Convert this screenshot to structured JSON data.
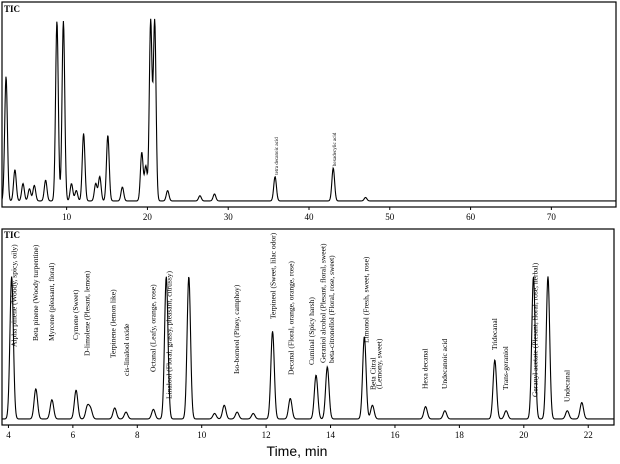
{
  "figure": {
    "xlabel": "Time, min"
  },
  "chart_data": [
    {
      "type": "line",
      "title": "TIC",
      "xlabel": "",
      "ylabel": "",
      "xlim": [
        2,
        78
      ],
      "ylim": [
        0,
        100
      ],
      "x_ticks": [
        10,
        20,
        30,
        40,
        50,
        60,
        70
      ],
      "grid": false,
      "legend": "none",
      "series": [
        {
          "peaks": [
            {
              "x": 2.5,
              "y": 72
            },
            {
              "x": 3.6,
              "y": 18
            },
            {
              "x": 4.6,
              "y": 10
            },
            {
              "x": 5.4,
              "y": 7
            },
            {
              "x": 6.0,
              "y": 9
            },
            {
              "x": 7.4,
              "y": 12
            },
            {
              "x": 8.8,
              "y": 104
            },
            {
              "x": 9.6,
              "y": 104
            },
            {
              "x": 10.6,
              "y": 10
            },
            {
              "x": 11.2,
              "y": 6
            },
            {
              "x": 12.1,
              "y": 39
            },
            {
              "x": 13.6,
              "y": 10
            },
            {
              "x": 14.1,
              "y": 14
            },
            {
              "x": 15.1,
              "y": 38
            },
            {
              "x": 16.9,
              "y": 8
            },
            {
              "x": 19.3,
              "y": 28
            },
            {
              "x": 19.8,
              "y": 20
            },
            {
              "x": 20.4,
              "y": 104
            },
            {
              "x": 20.9,
              "y": 104
            },
            {
              "x": 22.5,
              "y": 6
            },
            {
              "x": 26.5,
              "y": 3
            },
            {
              "x": 28.3,
              "y": 4
            },
            {
              "x": 35.8,
              "y": 14
            },
            {
              "x": 43.0,
              "y": 19
            },
            {
              "x": 47.0,
              "y": 2
            }
          ]
        }
      ],
      "annotations": [
        {
          "text": "tetra decanoic acid",
          "x": 35.8
        },
        {
          "text": "hexadecylic acid",
          "x": 43.0
        }
      ]
    },
    {
      "type": "line",
      "title": "TIC",
      "xlabel": "Time, min",
      "ylabel": "",
      "xlim": [
        3.8,
        22.8
      ],
      "ylim": [
        0,
        100
      ],
      "x_ticks": [
        4,
        6,
        8,
        10,
        12,
        14,
        16,
        18,
        20,
        22
      ],
      "grid": false,
      "legend": "none",
      "series": [
        {
          "peaks": [
            {
              "x": 4.1,
              "y": 104
            },
            {
              "x": 4.85,
              "y": 22
            },
            {
              "x": 5.35,
              "y": 14
            },
            {
              "x": 6.1,
              "y": 21
            },
            {
              "x": 6.45,
              "y": 9
            },
            {
              "x": 6.55,
              "y": 7
            },
            {
              "x": 7.3,
              "y": 8
            },
            {
              "x": 7.65,
              "y": 5
            },
            {
              "x": 8.5,
              "y": 7
            },
            {
              "x": 8.9,
              "y": 104
            },
            {
              "x": 9.6,
              "y": 104
            },
            {
              "x": 10.4,
              "y": 4
            },
            {
              "x": 10.7,
              "y": 10
            },
            {
              "x": 11.1,
              "y": 5
            },
            {
              "x": 11.6,
              "y": 4
            },
            {
              "x": 12.2,
              "y": 64
            },
            {
              "x": 12.75,
              "y": 15
            },
            {
              "x": 13.55,
              "y": 32
            },
            {
              "x": 13.9,
              "y": 38
            },
            {
              "x": 15.05,
              "y": 60
            },
            {
              "x": 15.3,
              "y": 10
            },
            {
              "x": 16.95,
              "y": 9
            },
            {
              "x": 17.55,
              "y": 6
            },
            {
              "x": 19.1,
              "y": 43
            },
            {
              "x": 19.45,
              "y": 6
            },
            {
              "x": 20.3,
              "y": 104
            },
            {
              "x": 20.75,
              "y": 104
            },
            {
              "x": 21.35,
              "y": 6
            },
            {
              "x": 21.8,
              "y": 12
            }
          ]
        }
      ],
      "annotations": [
        {
          "text": "Alpha pinene  (Woody, spicy, oily)",
          "x": 4.1,
          "y": 104
        },
        {
          "text": "Beta pinene  (Woody turpentine)",
          "x": 4.85,
          "y": 22
        },
        {
          "text": "Myrcene (pleasant, floral)",
          "x": 5.35,
          "y": 14
        },
        {
          "text": "Cymene (Sweet)",
          "x": 6.1,
          "y": 21
        },
        {
          "text": "D-limolene (Plesant, lemon)",
          "x": 6.45,
          "y": 9
        },
        {
          "text": "Terpinene (lemon like)",
          "x": 7.3,
          "y": 8
        },
        {
          "text": "cis-linalool oxide",
          "x": 7.65,
          "y": 5
        },
        {
          "text": "Octanal  (Leafy, orange, rose)",
          "x": 8.5,
          "y": 7
        },
        {
          "text": "Linalool (Floral, grassy, pleasant, citrussy)",
          "x": 8.9,
          "y": 104
        },
        {
          "text": "Iso-borneol  (Piney, camphoy)",
          "x": 11.1,
          "y": 5
        },
        {
          "text": "Terpineol  (Sweet, lilac odor)",
          "x": 12.2,
          "y": 64
        },
        {
          "text": "Decanal  (Floral, orange, orange, rose)",
          "x": 12.75,
          "y": 15
        },
        {
          "text": "Cuminal  (Spicy harsh)",
          "x": 13.55,
          "y": 32
        },
        {
          "text": "Geraniol alcohol (Plesant, floral, sweet)",
          "x": 13.75,
          "y": 36
        },
        {
          "text": "beta-citronellol (Floral, rose, sweet)",
          "x": 13.95,
          "y": 38
        },
        {
          "text": "Limonol  (Fresh, sweet, rose)",
          "x": 15.05,
          "y": 60
        },
        {
          "text": "Beta Citral",
          "x": 15.3,
          "y": 10
        },
        {
          "text": "(Lemony, sweet)",
          "x": 15.3,
          "y": 10
        },
        {
          "text": "Hexa decanal",
          "x": 16.95,
          "y": 9
        },
        {
          "text": "Undecanoic acid",
          "x": 17.55,
          "y": 6
        },
        {
          "text": "Tridecanal",
          "x": 19.1,
          "y": 43
        },
        {
          "text": "Trans-geraniol",
          "x": 19.45,
          "y": 6
        },
        {
          "text": "Geranyl acetate  (Plesant, floral, rose, herbal)",
          "x": 20.3,
          "y": 104
        },
        {
          "text": "Undecanal",
          "x": 21.35,
          "y": 6
        }
      ]
    }
  ]
}
